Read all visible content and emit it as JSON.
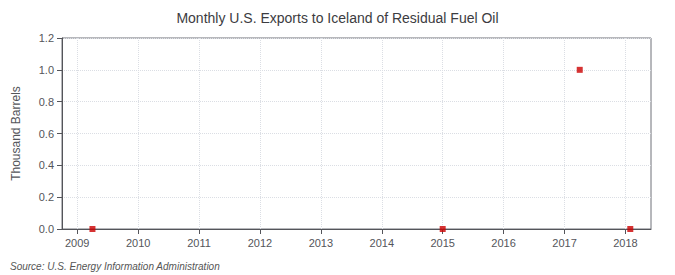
{
  "chart_data": {
    "type": "scatter",
    "title": "Monthly U.S. Exports to Iceland of Residual Fuel Oil",
    "ylabel": "Thousand Barrels",
    "annotations": [
      "Source: U.S. Energy Information Administration"
    ],
    "x": [
      2009.25,
      2015.0,
      2017.25,
      2018.08
    ],
    "values": [
      0.0,
      0.0,
      1.0,
      0.0
    ],
    "color": "#cc0000",
    "marker": "square",
    "xlim": [
      2008.75,
      2018.42
    ],
    "xticks": [
      2009,
      2010,
      2011,
      2012,
      2013,
      2014,
      2015,
      2016,
      2017,
      2018
    ],
    "ylim": [
      0.0,
      1.2
    ],
    "yticks": [
      {
        "value": 0.0,
        "label": "0.0"
      },
      0.2,
      0.4,
      0.6,
      0.8,
      {
        "value": 1.0,
        "label": "1.0"
      },
      1.2
    ],
    "grid": true
  }
}
